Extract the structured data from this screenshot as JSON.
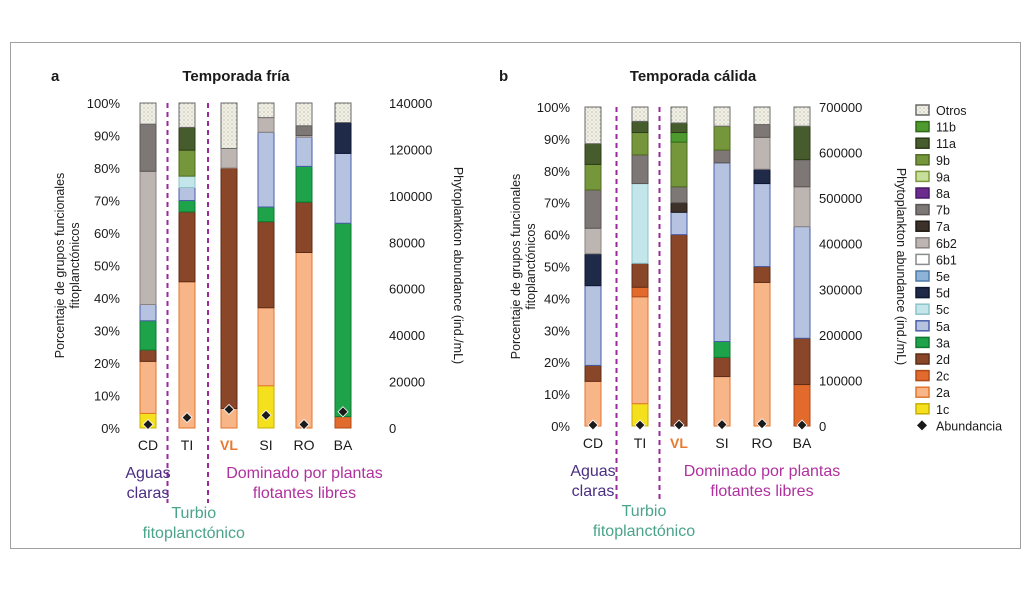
{
  "chart_data": {
    "type": "bar",
    "stacked": true,
    "panels": [
      {
        "letter": "a",
        "title": "Temporada fría",
        "ylabel_left": "Porcentaje de grupos funcionales fitoplanctónicos",
        "ylabel_right": "Phytoplankton abundance (ind./mL)",
        "left_ticks": [
          "0%",
          "10%",
          "20%",
          "30%",
          "40%",
          "50%",
          "60%",
          "70%",
          "80%",
          "90%",
          "100%"
        ],
        "right_ticks": [
          "0",
          "20000",
          "40000",
          "60000",
          "80000",
          "100000",
          "120000",
          "140000"
        ],
        "right_max": 140000,
        "categories": [
          "CD",
          "TI",
          "VL",
          "SI",
          "RO",
          "BA"
        ],
        "bars": [
          {
            "segments": [
              [
                "1c",
                4.5
              ],
              [
                "2a",
                16
              ],
              [
                "2d",
                3.5
              ],
              [
                "3a",
                9
              ],
              [
                "5a",
                5
              ],
              [
                "6b2",
                41
              ],
              [
                "7b",
                14.5
              ],
              [
                "otros",
                6.5
              ]
            ]
          },
          {
            "segments": [
              [
                "2a",
                45
              ],
              [
                "2d",
                21.5
              ],
              [
                "3a",
                3.5
              ],
              [
                "5a",
                4
              ],
              [
                "5c",
                3.5
              ],
              [
                "9b",
                8
              ],
              [
                "11a",
                7
              ],
              [
                "otros",
                7.5
              ]
            ]
          },
          {
            "segments": [
              [
                "2a",
                6
              ],
              [
                "2d",
                74
              ],
              [
                "6b2",
                6
              ],
              [
                "otros",
                14
              ]
            ]
          },
          {
            "segments": [
              [
                "1c",
                13
              ],
              [
                "2a",
                24
              ],
              [
                "2d",
                26.5
              ],
              [
                "3a",
                4.5
              ],
              [
                "5a",
                23
              ],
              [
                "6b2",
                4.5
              ],
              [
                "otros",
                4.5
              ]
            ]
          },
          {
            "segments": [
              [
                "2a",
                54
              ],
              [
                "2d",
                15.5
              ],
              [
                "3a",
                11
              ],
              [
                "5a",
                9
              ],
              [
                "6b2",
                0.5
              ],
              [
                "7b",
                3
              ],
              [
                "otros",
                7
              ]
            ]
          },
          {
            "segments": [
              [
                "2c",
                3.5
              ],
              [
                "3a",
                59.5
              ],
              [
                "5a",
                21.5
              ],
              [
                "5d",
                9.5
              ],
              [
                "otros",
                6
              ]
            ]
          }
        ],
        "abundance": [
          1500,
          4500,
          8000,
          5500,
          1500,
          7000
        ],
        "regions": [
          {
            "name": "Aguas claras",
            "lines": [
              "Aguas",
              "claras"
            ],
            "color": "#4b2e83"
          },
          {
            "name": "Turbio fitoplanctónico",
            "lines": [
              "Turbio",
              "fitoplanctónico"
            ],
            "color": "#4aa38a"
          },
          {
            "name": "Dominado por plantas flotantes libres",
            "lines": [
              "Dominado por plantas",
              "flotantes libres"
            ],
            "color": "#b0309e"
          }
        ]
      },
      {
        "letter": "b",
        "title": "Temporada cálida",
        "ylabel_left": "Porcentaje de grupos funcionales fitoplanctónicos",
        "ylabel_right": "Phytoplankton abundance (ind./mL)",
        "left_ticks": [
          "0%",
          "10%",
          "20%",
          "30%",
          "40%",
          "50%",
          "60%",
          "70%",
          "80%",
          "90%",
          "100%"
        ],
        "right_ticks": [
          "0",
          "100000",
          "200000",
          "300000",
          "400000",
          "500000",
          "600000",
          "700000"
        ],
        "right_max": 700000,
        "categories": [
          "CD",
          "TI",
          "VL",
          "SI",
          "RO",
          "BA"
        ],
        "bars": [
          {
            "segments": [
              [
                "2a",
                14
              ],
              [
                "2d",
                5
              ],
              [
                "5a",
                25
              ],
              [
                "5d",
                10
              ],
              [
                "6b2",
                8
              ],
              [
                "7b",
                12
              ],
              [
                "9b",
                8
              ],
              [
                "11a",
                6.5
              ],
              [
                "otros",
                11.5
              ]
            ]
          },
          {
            "segments": [
              [
                "1c",
                7
              ],
              [
                "2a",
                33.5
              ],
              [
                "2c",
                3
              ],
              [
                "2d",
                7.5
              ],
              [
                "5c",
                25
              ],
              [
                "7b",
                9
              ],
              [
                "9b",
                7
              ],
              [
                "11a",
                3.5
              ],
              [
                "otros",
                4.5
              ]
            ]
          },
          {
            "segments": [
              [
                "2d",
                60
              ],
              [
                "5a",
                7
              ],
              [
                "7a",
                3
              ],
              [
                "7b",
                5
              ],
              [
                "9b",
                14
              ],
              [
                "11b",
                3
              ],
              [
                "11a",
                3
              ],
              [
                "otros",
                5
              ]
            ]
          },
          {
            "segments": [
              [
                "2a",
                15.5
              ],
              [
                "2d",
                6
              ],
              [
                "3a",
                5
              ],
              [
                "5a",
                56
              ],
              [
                "7b",
                4
              ],
              [
                "9b",
                7.5
              ],
              [
                "otros",
                6
              ]
            ]
          },
          {
            "segments": [
              [
                "2a",
                45
              ],
              [
                "2d",
                5
              ],
              [
                "5a",
                26
              ],
              [
                "5d",
                4.5
              ],
              [
                "6b2",
                10
              ],
              [
                "7b",
                4
              ],
              [
                "otros",
                5.5
              ]
            ]
          },
          {
            "segments": [
              [
                "2c",
                13
              ],
              [
                "2d",
                14.5
              ],
              [
                "5a",
                35
              ],
              [
                "6b2",
                12.5
              ],
              [
                "7b",
                8.5
              ],
              [
                "11a",
                10.5
              ],
              [
                "otros",
                6
              ]
            ]
          }
        ],
        "abundance": [
          2000,
          2000,
          2000,
          3000,
          5000,
          2000
        ],
        "regions": [
          {
            "name": "Aguas claras",
            "lines": [
              "Aguas",
              "claras"
            ],
            "color": "#4b2e83"
          },
          {
            "name": "Turbio fitoplanctónico",
            "lines": [
              "Turbio",
              "fitoplanctónico"
            ],
            "color": "#4aa38a"
          },
          {
            "name": "Dominado por plantas flotantes libres",
            "lines": [
              "Dominado por plantas",
              "flotantes libres"
            ],
            "color": "#b0309e"
          }
        ]
      }
    ],
    "highlight_category": {
      "label": "VL",
      "color": "#e8792f"
    },
    "legend": {
      "placement": "right",
      "entries": [
        {
          "key": "otros",
          "label": "Otros",
          "fill": "#f3f1e6",
          "stroke": "#6a6a6a",
          "pattern": true
        },
        {
          "key": "11b",
          "label": "11b",
          "fill": "#4f9a2e",
          "stroke": "#2e6a18"
        },
        {
          "key": "11a",
          "label": "11a",
          "fill": "#465c2c",
          "stroke": "#2c3b18"
        },
        {
          "key": "9b",
          "label": "9b",
          "fill": "#76963c",
          "stroke": "#4f6a22"
        },
        {
          "key": "9a",
          "label": "9a",
          "fill": "#c8df9a",
          "stroke": "#7a9a3a"
        },
        {
          "key": "8a",
          "label": "8a",
          "fill": "#6a2d8e",
          "stroke": "#4a1a6a"
        },
        {
          "key": "7b",
          "label": "7b",
          "fill": "#7d7775",
          "stroke": "#5a5452"
        },
        {
          "key": "7a",
          "label": "7a",
          "fill": "#3c3229",
          "stroke": "#1e1812"
        },
        {
          "key": "6b2",
          "label": "6b2",
          "fill": "#bdb5b2",
          "stroke": "#8a827f"
        },
        {
          "key": "6b1",
          "label": "6b1",
          "fill": "#ffffff",
          "stroke": "#8a8a8a"
        },
        {
          "key": "5e",
          "label": "5e",
          "fill": "#8db4d8",
          "stroke": "#4d7aa8"
        },
        {
          "key": "5d",
          "label": "5d",
          "fill": "#1e2a48",
          "stroke": "#0e1630"
        },
        {
          "key": "5c",
          "label": "5c",
          "fill": "#c3e6ea",
          "stroke": "#8cc4ca"
        },
        {
          "key": "5a",
          "label": "5a",
          "fill": "#b6c3e0",
          "stroke": "#4a5ea8"
        },
        {
          "key": "3a",
          "label": "3a",
          "fill": "#1ea24a",
          "stroke": "#0e7a30"
        },
        {
          "key": "2d",
          "label": "2d",
          "fill": "#8a4628",
          "stroke": "#5e2c16"
        },
        {
          "key": "2c",
          "label": "2c",
          "fill": "#e26a2c",
          "stroke": "#b04a18"
        },
        {
          "key": "2a",
          "label": "2a",
          "fill": "#f8b688",
          "stroke": "#e2762e"
        },
        {
          "key": "1c",
          "label": "1c",
          "fill": "#f5e01e",
          "stroke": "#c8b000"
        },
        {
          "key": "abundancia",
          "label": "Abundancia",
          "marker": "diamond",
          "fill": "#1a1a1a"
        }
      ]
    }
  }
}
